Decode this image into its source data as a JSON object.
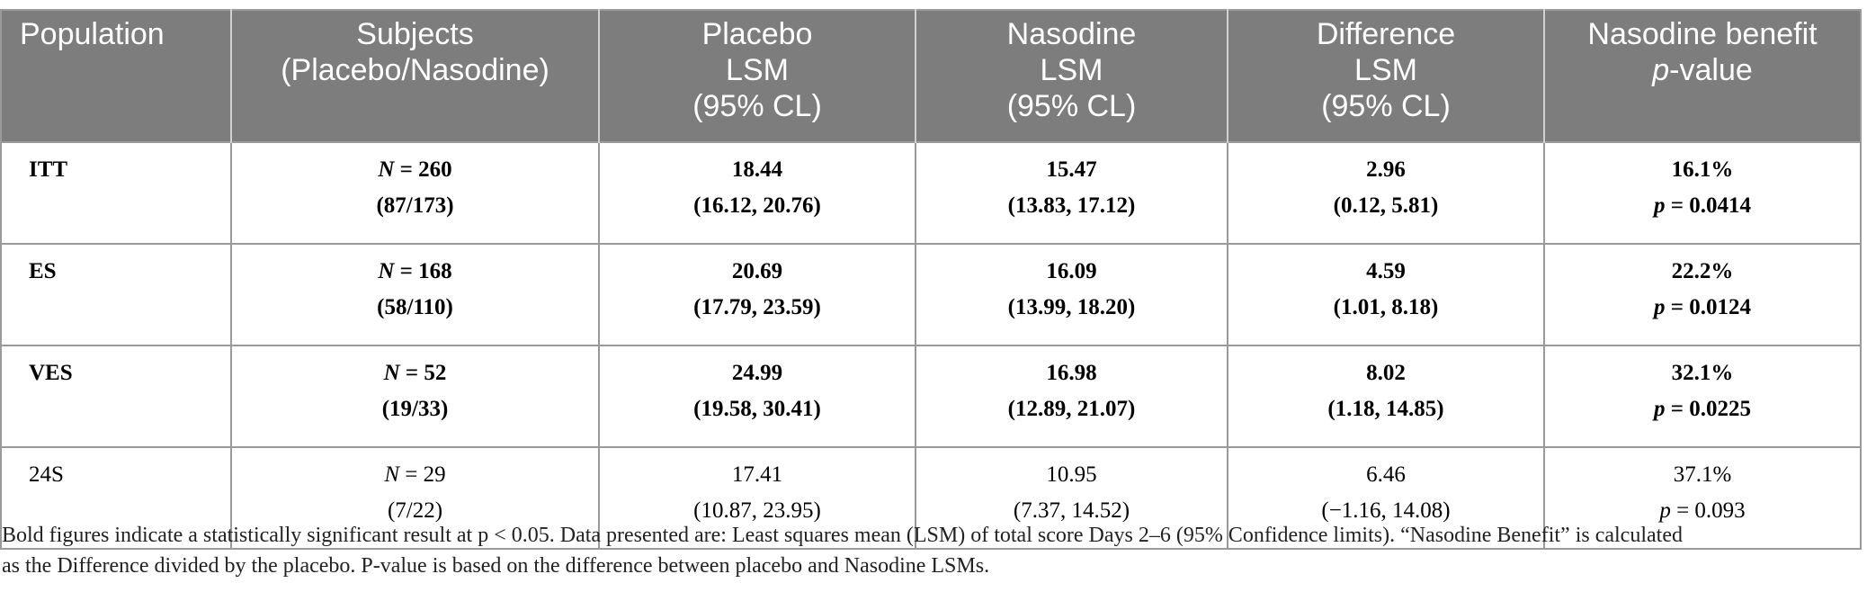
{
  "table": {
    "header": [
      [
        "Population"
      ],
      [
        "Subjects",
        "(Placebo/Nasodine)"
      ],
      [
        "Placebo",
        "LSM",
        "(95% CL)"
      ],
      [
        "Nasodine",
        "LSM",
        "(95% CL)"
      ],
      [
        "Difference",
        "LSM",
        "(95% CL)"
      ],
      [
        "Nasodine benefit",
        "p-value"
      ]
    ],
    "rows": [
      {
        "bold": true,
        "cells": [
          [
            "ITT"
          ],
          [
            "N = 260",
            "(87/173)"
          ],
          [
            "18.44",
            "(16.12, 20.76)"
          ],
          [
            "15.47",
            "(13.83, 17.12)"
          ],
          [
            "2.96",
            "(0.12, 5.81)"
          ],
          [
            "16.1%",
            "p = 0.0414"
          ]
        ]
      },
      {
        "bold": true,
        "cells": [
          [
            "ES"
          ],
          [
            "N = 168",
            "(58/110)"
          ],
          [
            "20.69",
            "(17.79, 23.59)"
          ],
          [
            "16.09",
            "(13.99, 18.20)"
          ],
          [
            "4.59",
            "(1.01, 8.18)"
          ],
          [
            "22.2%",
            "p = 0.0124"
          ]
        ]
      },
      {
        "bold": true,
        "cells": [
          [
            "VES"
          ],
          [
            "N = 52",
            "(19/33)"
          ],
          [
            "24.99",
            "(19.58, 30.41)"
          ],
          [
            "16.98",
            "(12.89, 21.07)"
          ],
          [
            "8.02",
            "(1.18, 14.85)"
          ],
          [
            "32.1%",
            "p = 0.0225"
          ]
        ]
      },
      {
        "bold": false,
        "cells": [
          [
            "24S"
          ],
          [
            "N = 29",
            "(7/22)"
          ],
          [
            "17.41",
            "(10.87, 23.95)"
          ],
          [
            "10.95",
            "(7.37, 14.52)"
          ],
          [
            "6.46",
            "(−1.16, 14.08)"
          ],
          [
            "37.1%",
            "p = 0.093"
          ]
        ]
      }
    ]
  },
  "footnote": [
    "Bold figures indicate a statistically significant result at p < 0.05. Data presented are: Least squares mean (LSM) of total score Days 2–6 (95% Confidence limits). “Nasodine Benefit” is calculated",
    "as the Difference divided by the placebo. P-value is based on the difference between placebo and Nasodine LSMs."
  ]
}
